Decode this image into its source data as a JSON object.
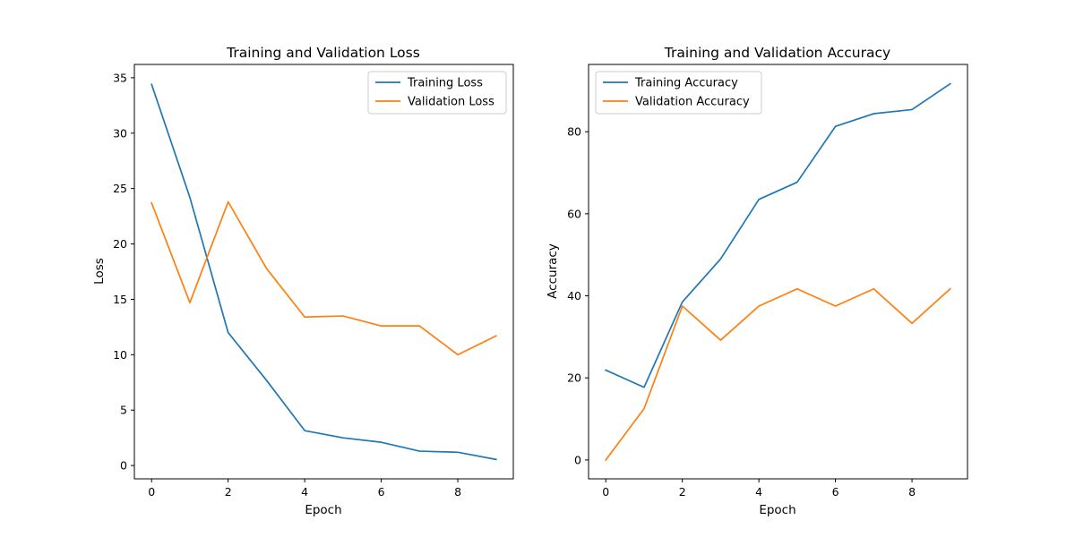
{
  "chart_data": [
    {
      "type": "line",
      "title": "Training and Validation Loss",
      "xlabel": "Epoch",
      "ylabel": "Loss",
      "x": [
        0,
        1,
        2,
        3,
        4,
        5,
        6,
        7,
        8,
        9
      ],
      "xlim": [
        -0.45,
        9.45
      ],
      "ylim": [
        -1.2,
        36.2
      ],
      "xticks": [
        0,
        2,
        4,
        6,
        8
      ],
      "yticks": [
        0,
        5,
        10,
        15,
        20,
        25,
        30,
        35
      ],
      "grid": false,
      "legend_position": "top-right",
      "series": [
        {
          "name": "Training Loss",
          "color": "#1f77b4",
          "values": [
            34.4,
            24.2,
            12.0,
            7.7,
            3.15,
            2.5,
            2.1,
            1.3,
            1.2,
            0.55
          ]
        },
        {
          "name": "Validation Loss",
          "color": "#ff7f0e",
          "values": [
            23.7,
            14.7,
            23.8,
            17.8,
            13.4,
            13.5,
            12.6,
            12.6,
            10.0,
            11.7
          ]
        }
      ]
    },
    {
      "type": "line",
      "title": "Training and Validation Accuracy",
      "xlabel": "Epoch",
      "ylabel": "Accuracy",
      "x": [
        0,
        1,
        2,
        3,
        4,
        5,
        6,
        7,
        8,
        9
      ],
      "xlim": [
        -0.45,
        9.45
      ],
      "ylim": [
        -4.6,
        96.4
      ],
      "xticks": [
        0,
        2,
        4,
        6,
        8
      ],
      "yticks": [
        0,
        20,
        40,
        60,
        80
      ],
      "grid": false,
      "legend_position": "top-left",
      "series": [
        {
          "name": "Training Accuracy",
          "color": "#1f77b4",
          "values": [
            21.9,
            17.7,
            38.5,
            49.0,
            63.5,
            67.7,
            81.3,
            84.4,
            85.4,
            91.7
          ]
        },
        {
          "name": "Validation Accuracy",
          "color": "#ff7f0e",
          "values": [
            0.0,
            12.5,
            37.5,
            29.2,
            37.5,
            41.7,
            37.5,
            41.7,
            33.3,
            41.7
          ]
        }
      ]
    }
  ]
}
